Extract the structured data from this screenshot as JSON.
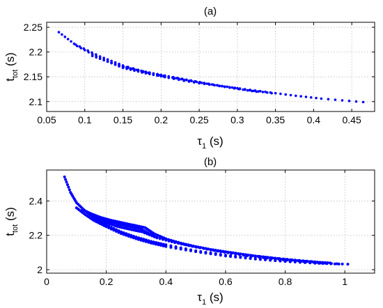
{
  "chart_data": [
    {
      "type": "scatter",
      "title": "(a)",
      "xlabel": {
        "main": "τ",
        "sub": "1",
        "unit": " (s)"
      },
      "ylabel": {
        "main": "t",
        "sub": "tot",
        "unit": " (s)"
      },
      "xlim": [
        0.05,
        0.48
      ],
      "ylim": [
        2.08,
        2.26
      ],
      "xticks": [
        0.05,
        0.1,
        0.15,
        0.2,
        0.25,
        0.3,
        0.35,
        0.4,
        0.45
      ],
      "xtick_labels": [
        "0.05",
        "0.1",
        "0.15",
        "0.2",
        "0.25",
        "0.3",
        "0.35",
        "0.4",
        "0.45"
      ],
      "yticks": [
        2.1,
        2.15,
        2.2,
        2.25
      ],
      "ytick_labels": [
        "2.1",
        "2.15",
        "2.2",
        "2.25"
      ],
      "grid": true,
      "marker_color": "#0000ff",
      "series": [
        {
          "points": [
            [
              0.066,
              2.24
            ],
            [
              0.09,
              2.212
            ],
            [
              0.12,
              2.187
            ],
            [
              0.15,
              2.168
            ],
            [
              0.18,
              2.157
            ],
            [
              0.21,
              2.148
            ],
            [
              0.25,
              2.137
            ],
            [
              0.29,
              2.129
            ],
            [
              0.33,
              2.121
            ],
            [
              0.37,
              2.113
            ],
            [
              0.41,
              2.106
            ],
            [
              0.465,
              2.099
            ]
          ]
        },
        {
          "points": [
            [
              0.088,
              2.215
            ],
            [
              0.12,
              2.191
            ],
            [
              0.15,
              2.173
            ],
            [
              0.19,
              2.155
            ],
            [
              0.23,
              2.142
            ],
            [
              0.27,
              2.133
            ],
            [
              0.31,
              2.124
            ],
            [
              0.345,
              2.117
            ]
          ]
        },
        {
          "points": [
            [
              0.11,
              2.192
            ],
            [
              0.14,
              2.175
            ],
            [
              0.17,
              2.162
            ],
            [
              0.21,
              2.15
            ],
            [
              0.25,
              2.138
            ],
            [
              0.29,
              2.128
            ],
            [
              0.325,
              2.12
            ]
          ]
        },
        {
          "points": [
            [
              0.13,
              2.181
            ],
            [
              0.16,
              2.167
            ],
            [
              0.19,
              2.156
            ],
            [
              0.22,
              2.147
            ],
            [
              0.26,
              2.136
            ],
            [
              0.3,
              2.127
            ]
          ]
        },
        {
          "points": [
            [
              0.145,
              2.172
            ],
            [
              0.18,
              2.16
            ],
            [
              0.21,
              2.151
            ],
            [
              0.245,
              2.141
            ],
            [
              0.28,
              2.131
            ]
          ]
        }
      ]
    },
    {
      "type": "scatter",
      "title": "(b)",
      "xlabel": {
        "main": "τ",
        "sub": "1",
        "unit": " (s)"
      },
      "ylabel": {
        "main": "t",
        "sub": "tot",
        "unit": " (s)"
      },
      "xlim": [
        0,
        1.1
      ],
      "ylim": [
        1.98,
        2.58
      ],
      "xticks": [
        0,
        0.2,
        0.4,
        0.6,
        0.8,
        1.0
      ],
      "xtick_labels": [
        "0",
        "0.2",
        "0.4",
        "0.6",
        "0.8",
        "1"
      ],
      "yticks": [
        2.0,
        2.2,
        2.4
      ],
      "ytick_labels": [
        "2",
        "2.2",
        "2.4"
      ],
      "grid": true,
      "marker_color": "#0000ff",
      "series": [
        {
          "points": [
            [
              0.06,
              2.54
            ],
            [
              0.08,
              2.45
            ],
            [
              0.1,
              2.39
            ],
            [
              0.13,
              2.34
            ],
            [
              0.16,
              2.3
            ],
            [
              0.2,
              2.26
            ],
            [
              0.25,
              2.22
            ],
            [
              0.3,
              2.19
            ],
            [
              0.35,
              2.165
            ],
            [
              0.4,
              2.145
            ],
            [
              0.5,
              2.11
            ],
            [
              0.6,
              2.085
            ],
            [
              0.7,
              2.065
            ],
            [
              0.8,
              2.05
            ],
            [
              0.9,
              2.04
            ],
            [
              1.01,
              2.032
            ]
          ]
        },
        {
          "points": [
            [
              0.1,
              2.36
            ],
            [
              0.13,
              2.32
            ],
            [
              0.16,
              2.285
            ],
            [
              0.2,
              2.25
            ],
            [
              0.25,
              2.21
            ],
            [
              0.3,
              2.18
            ],
            [
              0.35,
              2.155
            ],
            [
              0.4,
              2.135
            ],
            [
              0.5,
              2.105
            ],
            [
              0.6,
              2.08
            ],
            [
              0.7,
              2.062
            ],
            [
              0.8,
              2.048
            ],
            [
              0.9,
              2.038
            ],
            [
              0.98,
              2.033
            ]
          ]
        },
        {
          "points": [
            [
              0.12,
              2.35
            ],
            [
              0.15,
              2.325
            ],
            [
              0.18,
              2.305
            ],
            [
              0.21,
              2.29
            ],
            [
              0.25,
              2.275
            ],
            [
              0.29,
              2.26
            ],
            [
              0.33,
              2.245
            ],
            [
              0.36,
              2.21
            ],
            [
              0.4,
              2.18
            ],
            [
              0.45,
              2.155
            ],
            [
              0.5,
              2.135
            ],
            [
              0.55,
              2.118
            ],
            [
              0.6,
              2.105
            ],
            [
              0.65,
              2.092
            ],
            [
              0.7,
              2.08
            ],
            [
              0.75,
              2.07
            ],
            [
              0.8,
              2.06
            ],
            [
              0.85,
              2.052
            ],
            [
              0.9,
              2.045
            ],
            [
              0.95,
              2.04
            ]
          ]
        },
        {
          "points": [
            [
              0.14,
              2.33
            ],
            [
              0.17,
              2.305
            ],
            [
              0.2,
              2.285
            ],
            [
              0.24,
              2.265
            ],
            [
              0.28,
              2.25
            ],
            [
              0.32,
              2.235
            ],
            [
              0.36,
              2.195
            ],
            [
              0.42,
              2.165
            ],
            [
              0.48,
              2.14
            ],
            [
              0.55,
              2.115
            ],
            [
              0.62,
              2.095
            ],
            [
              0.7,
              2.075
            ],
            [
              0.78,
              2.06
            ],
            [
              0.86,
              2.048
            ],
            [
              0.93,
              2.04
            ]
          ]
        },
        {
          "points": [
            [
              0.16,
              2.3
            ],
            [
              0.2,
              2.272
            ],
            [
              0.24,
              2.25
            ],
            [
              0.28,
              2.235
            ],
            [
              0.32,
              2.22
            ],
            [
              0.37,
              2.185
            ],
            [
              0.43,
              2.158
            ],
            [
              0.5,
              2.132
            ],
            [
              0.58,
              2.108
            ],
            [
              0.66,
              2.088
            ],
            [
              0.74,
              2.072
            ],
            [
              0.82,
              2.058
            ],
            [
              0.9,
              2.046
            ]
          ]
        }
      ]
    }
  ]
}
